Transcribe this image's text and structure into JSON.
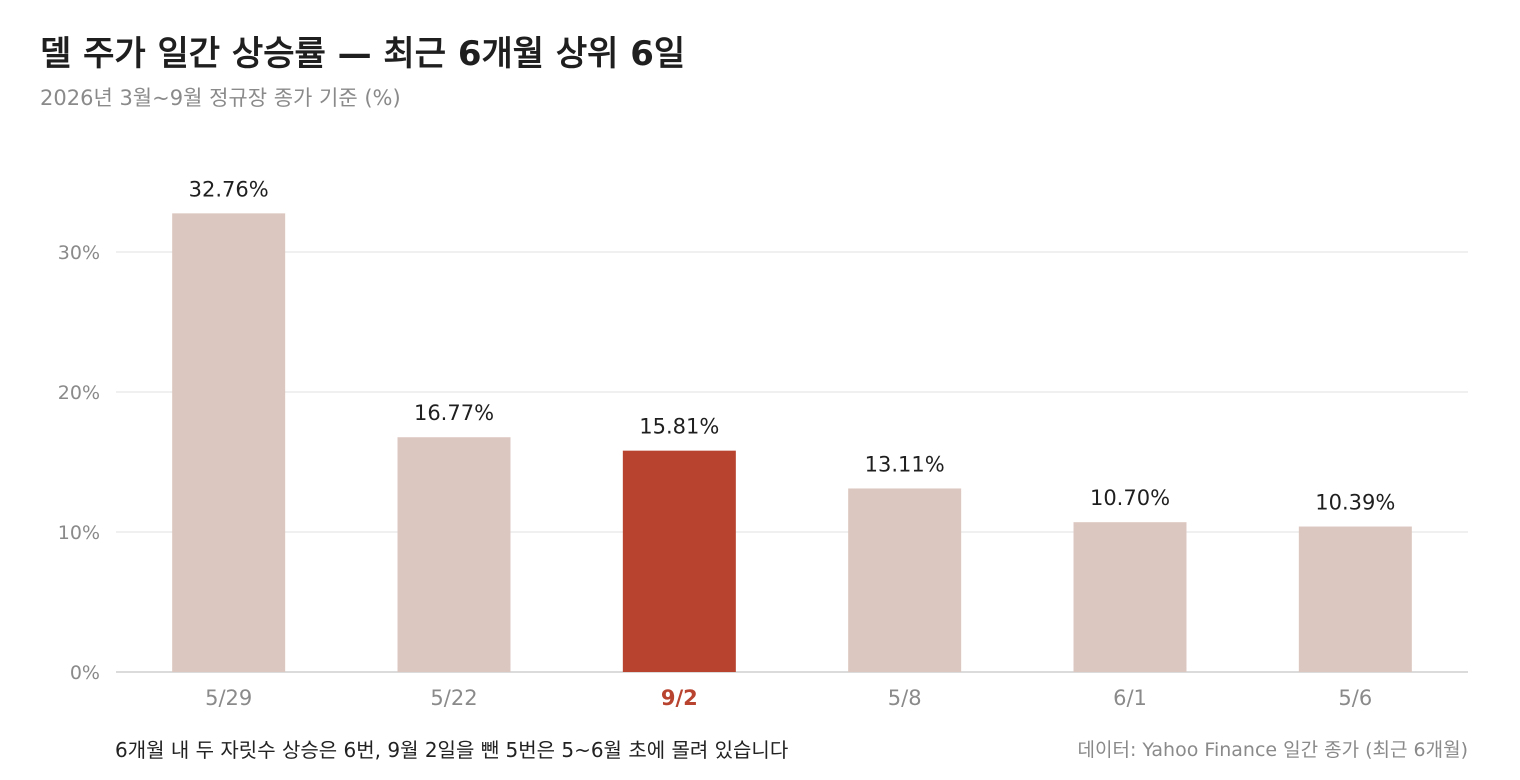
{
  "header": {
    "title": "델 주가 일간 상승률 — 최근 6개월 상위 6일",
    "subtitle": "2026년 3월~9월 정규장 종가 기준 (%)"
  },
  "footer": {
    "note": "6개월 내 두 자릿수 상승은 6번, 9월 2일을 뺀 5번은 5~6월 초에 몰려 있습니다",
    "source": "데이터: Yahoo Finance 일간 종가 (최근 6개월)"
  },
  "colors": {
    "bar": "#dcc7c0",
    "highlight": "#b84430",
    "grid": "#e2e2e2",
    "axis_text": "#8a8a8a",
    "label_text": "#1f1f1f"
  },
  "chart_data": {
    "type": "bar",
    "title": "델 주가 일간 상승률 — 최근 6개월 상위 6일",
    "subtitle": "2026년 3월~9월 정규장 종가 기준 (%)",
    "categories": [
      "5/29",
      "5/22",
      "9/2",
      "5/8",
      "6/1",
      "5/6"
    ],
    "values": [
      32.76,
      16.77,
      15.81,
      13.11,
      10.7,
      10.39
    ],
    "value_labels": [
      "32.76%",
      "16.77%",
      "15.81%",
      "13.11%",
      "10.70%",
      "10.39%"
    ],
    "highlight_index": 2,
    "yticks": [
      0,
      10,
      20,
      30
    ],
    "ytick_labels": [
      "0%",
      "10%",
      "20%",
      "30%"
    ],
    "ylim": [
      0,
      35
    ],
    "grid": true,
    "legend": "none"
  }
}
